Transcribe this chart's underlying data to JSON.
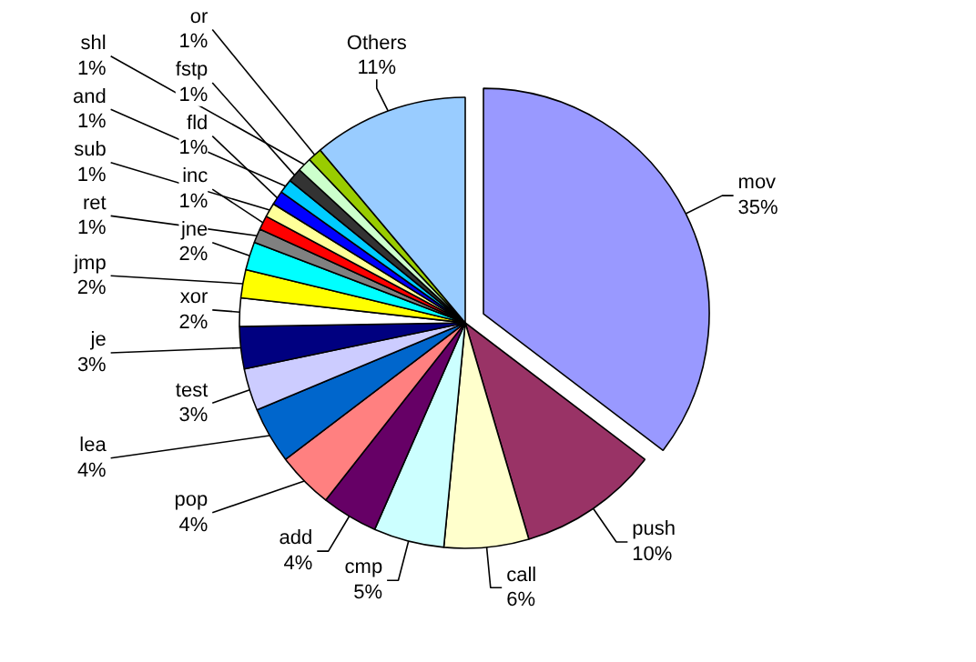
{
  "chart_data": {
    "type": "pie",
    "categories": [
      "mov",
      "push",
      "call",
      "cmp",
      "add",
      "pop",
      "lea",
      "test",
      "je",
      "xor",
      "jmp",
      "jne",
      "ret",
      "inc",
      "sub",
      "fld",
      "and",
      "fstp",
      "shl",
      "or",
      "Others"
    ],
    "values": [
      35,
      10,
      6,
      5,
      4,
      4,
      4,
      3,
      3,
      2,
      2,
      2,
      1,
      1,
      1,
      1,
      1,
      1,
      1,
      1,
      11
    ],
    "colors": [
      "#9999ff",
      "#993366",
      "#ffffcc",
      "#ccffff",
      "#660066",
      "#ff8080",
      "#0066cc",
      "#ccccff",
      "#000080",
      "#ffffff",
      "#ffff00",
      "#00ffff",
      "#808080",
      "#ff0000",
      "#ffff99",
      "#0000ff",
      "#00ccff",
      "#333333",
      "#ccffcc",
      "#99cc00",
      "#99ccff"
    ],
    "value_labels": [
      "35%",
      "10%",
      "6%",
      "5%",
      "4%",
      "4%",
      "4%",
      "3%",
      "3%",
      "2%",
      "2%",
      "2%",
      "1%",
      "1%",
      "1%",
      "1%",
      "1%",
      "1%",
      "1%",
      "1%",
      "11%"
    ]
  }
}
